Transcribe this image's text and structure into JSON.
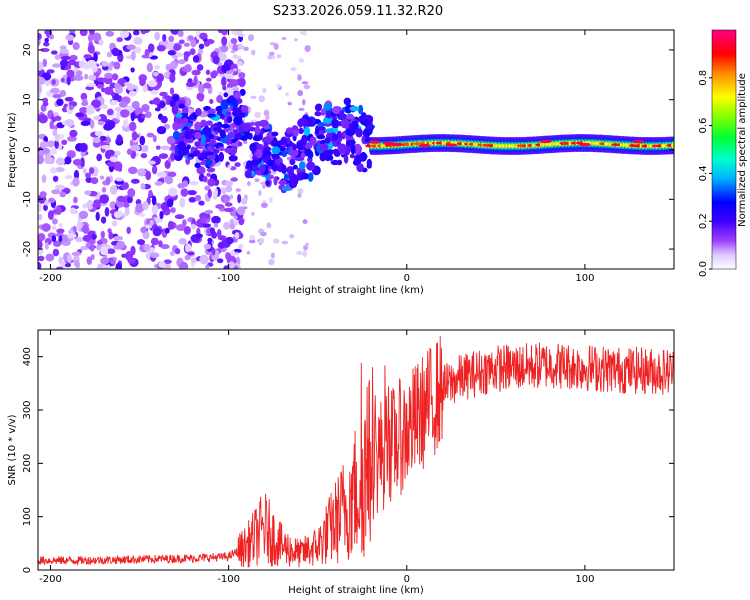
{
  "title": "S233.2026.059.11.32.R20",
  "colors": {
    "snr_line": "#ee2222",
    "axis": "#000000",
    "colormap": [
      "#ffffff",
      "#dcc8ff",
      "#9b3dff",
      "#5a00ff",
      "#0000ff",
      "#00c8ff",
      "#00ff66",
      "#66ff00",
      "#ffff00",
      "#ff8800",
      "#ff0000",
      "#ff0088"
    ]
  },
  "chart_data": [
    {
      "type": "heatmap",
      "name": "spectrogram",
      "xlabel": "Height of straight line (km)",
      "ylabel": "Frequency (Hz)",
      "xlim": [
        -207,
        150
      ],
      "ylim": [
        -24,
        24
      ],
      "xticks": [
        -200,
        -100,
        0,
        100
      ],
      "yticks": [
        -20,
        -10,
        0,
        10,
        20
      ],
      "signal_band": {
        "noise_region_x": [
          -207,
          -100
        ],
        "fragment_region_x": [
          -130,
          -20
        ],
        "steady_region_x": [
          -20,
          150
        ],
        "steady_center_hz": 1.0,
        "steady_halfwidth_hz": 1.8,
        "steady_peak_amplitude": 0.95
      },
      "colorbar": {
        "label": "Normalized spectral amplitude",
        "range": [
          0,
          1
        ],
        "ticks": [
          0.0,
          0.2,
          0.4,
          0.6,
          0.8
        ]
      }
    },
    {
      "type": "line",
      "name": "snr",
      "xlabel": "Height of straight line (km)",
      "ylabel": "SNR (10 * v/v)",
      "xlim": [
        -207,
        150
      ],
      "ylim": [
        0,
        450
      ],
      "xticks": [
        -200,
        -100,
        0,
        100
      ],
      "yticks": [
        0,
        100,
        200,
        300,
        400
      ],
      "series": [
        {
          "name": "SNR",
          "x": [
            -207,
            -180,
            -150,
            -120,
            -100,
            -90,
            -80,
            -70,
            -60,
            -50,
            -40,
            -30,
            -20,
            -10,
            0,
            10,
            20,
            30,
            40,
            50,
            60,
            70,
            80,
            100,
            120,
            150
          ],
          "y": [
            18,
            18,
            20,
            22,
            25,
            45,
            80,
            45,
            30,
            45,
            90,
            140,
            200,
            230,
            260,
            300,
            340,
            360,
            370,
            378,
            380,
            382,
            385,
            380,
            375,
            372
          ]
        }
      ]
    }
  ],
  "axes": {
    "top": {
      "ylabel": "Frequency (Hz)",
      "xlabel": "Height of straight line (km)",
      "yticks": [
        "20",
        "10",
        "0",
        "-10",
        "-20"
      ],
      "xticks": [
        "-200",
        "-100",
        "0",
        "100"
      ]
    },
    "bottom": {
      "ylabel": "SNR (10 * v/v)",
      "xlabel": "Height of straight line (km)",
      "yticks": [
        "400",
        "300",
        "200",
        "100",
        "0"
      ],
      "xticks": [
        "-200",
        "-100",
        "0",
        "100"
      ]
    },
    "colorbar": {
      "label": "Normalized spectral amplitude",
      "ticks": [
        "0.8",
        "0.6",
        "0.4",
        "0.2",
        "0.0"
      ]
    }
  }
}
